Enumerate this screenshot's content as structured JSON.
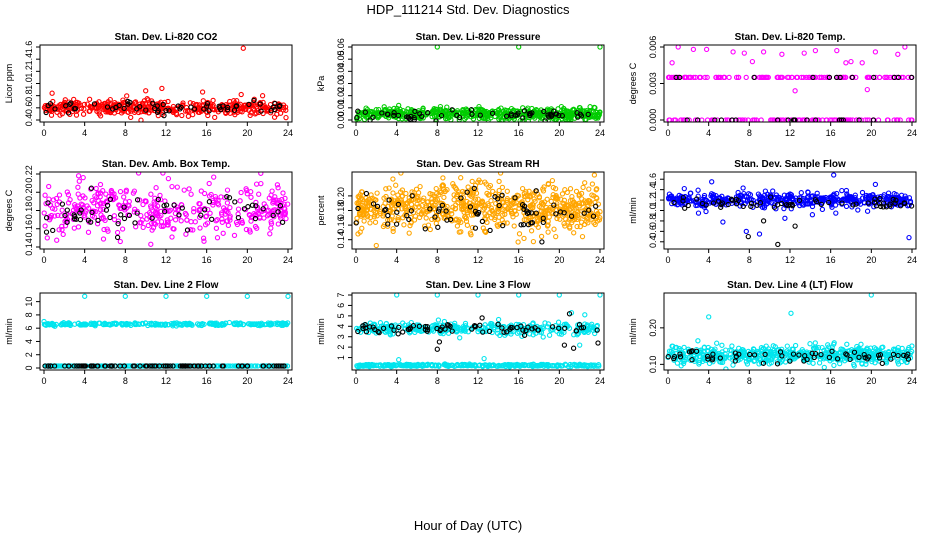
{
  "page": {
    "title": "HDP_111214  Std. Dev. Diagnostics",
    "xlabel": "Hour of Day (UTC)"
  },
  "colors": {
    "black": "#000000",
    "red": "#ff0000",
    "green": "#00cc00",
    "magenta": "#ff00ff",
    "orange": "#ffa500",
    "blue": "#0000ff",
    "cyan": "#00e5ee"
  },
  "chart_data": [
    {
      "type": "scatter",
      "title": "Stan. Dev. Li-820 CO2",
      "ylabel": "Licor ppm",
      "xlim": [
        0,
        24
      ],
      "ylim": [
        0.4,
        1.6
      ],
      "xticks": [
        "0",
        "4",
        "8",
        "12",
        "16",
        "20",
        "24"
      ],
      "yticks": [
        "0.4",
        "0.6",
        "0.8",
        "1.0",
        "1.2",
        "1.4",
        "1.6"
      ],
      "series": [
        {
          "color": "#ff0000",
          "bands": [
            [
              0.6,
              0.06
            ]
          ],
          "count": 400,
          "points": [
            [
              19.6,
              1.58
            ],
            [
              10.0,
              0.88
            ],
            [
              11.6,
              0.92
            ],
            [
              15.6,
              0.86
            ],
            [
              19.4,
              0.82
            ],
            [
              0.8,
              0.84
            ],
            [
              23.8,
              0.44
            ],
            [
              3.2,
              0.48
            ],
            [
              21.5,
              0.8
            ]
          ]
        },
        {
          "color": "#000000",
          "bands": [
            [
              0.6,
              0.05
            ]
          ],
          "count": 60,
          "points": []
        }
      ]
    },
    {
      "type": "scatter",
      "title": "Stan. Dev. Li-820 Pressure",
      "ylabel": "kPa",
      "xlim": [
        0,
        24
      ],
      "ylim": [
        0,
        0.06
      ],
      "xticks": [
        "0",
        "4",
        "8",
        "12",
        "16",
        "20",
        "24"
      ],
      "yticks": [
        "0.00",
        "0.01",
        "0.02",
        "0.03",
        "0.04",
        "0.05",
        "0.06"
      ],
      "series": [
        {
          "color": "#00cc00",
          "bands": [
            [
              0.005,
              0.0025
            ]
          ],
          "count": 500,
          "points": [
            [
              8.0,
              0.06
            ],
            [
              16.0,
              0.06
            ],
            [
              24.0,
              0.06
            ],
            [
              4.2,
              0.012
            ],
            [
              8.3,
              0.011
            ],
            [
              12.1,
              0.011
            ],
            [
              16.4,
              0.01
            ],
            [
              20.2,
              0.011
            ]
          ]
        },
        {
          "color": "#000000",
          "bands": [
            [
              0.004,
              0.002
            ]
          ],
          "count": 60,
          "points": []
        }
      ]
    },
    {
      "type": "scatter",
      "title": "Stan. Dev. Li-820 Temp.",
      "ylabel": "degrees C",
      "xlim": [
        0,
        24
      ],
      "ylim": [
        0,
        0.006
      ],
      "xticks": [
        "0",
        "4",
        "8",
        "12",
        "16",
        "20",
        "24"
      ],
      "yticks": [
        "0.000",
        "0.003",
        "0.006"
      ],
      "series": [
        {
          "color": "#ff00ff",
          "bands": [
            [
              0.0035,
              0
            ],
            [
              0.0,
              0
            ]
          ],
          "count": 220,
          "points": [
            [
              1.0,
              0.006
            ],
            [
              2.5,
              0.0058
            ],
            [
              3.8,
              0.0058
            ],
            [
              6.4,
              0.0056
            ],
            [
              7.5,
              0.0055
            ],
            [
              9.4,
              0.0056
            ],
            [
              11.2,
              0.0054
            ],
            [
              13.4,
              0.0055
            ],
            [
              14.5,
              0.0057
            ],
            [
              16.6,
              0.0057
            ],
            [
              18.0,
              0.0048
            ],
            [
              19.1,
              0.0047
            ],
            [
              20.4,
              0.0056
            ],
            [
              22.6,
              0.0054
            ],
            [
              23.3,
              0.006
            ],
            [
              0.4,
              0.0047
            ],
            [
              8.3,
              0.0048
            ],
            [
              12.5,
              0.0024
            ],
            [
              19.6,
              0.0025
            ],
            [
              17.5,
              0.0047
            ]
          ]
        },
        {
          "color": "#000000",
          "bands": [
            [
              0.0035,
              0
            ],
            [
              0.0,
              0
            ]
          ],
          "count": 30,
          "points": []
        }
      ]
    },
    {
      "type": "scatter",
      "title": "Stan. Dev. Amb. Box Temp.",
      "ylabel": "degrees C",
      "xlim": [
        0,
        24
      ],
      "ylim": [
        0.14,
        0.22
      ],
      "xticks": [
        "0",
        "4",
        "8",
        "12",
        "16",
        "20",
        "24"
      ],
      "yticks": [
        "0.14",
        "0.16",
        "0.18",
        "0.20",
        "0.22"
      ],
      "series": [
        {
          "color": "#ff00ff",
          "bands": [
            [
              0.18,
              0.014
            ]
          ],
          "count": 400,
          "points": [
            [
              11.7,
              0.228
            ],
            [
              9.3,
              0.225
            ],
            [
              7.5,
              0.146
            ],
            [
              10.5,
              0.143
            ],
            [
              3.4,
              0.218
            ]
          ]
        },
        {
          "color": "#000000",
          "bands": [
            [
              0.179,
              0.012
            ]
          ],
          "count": 60,
          "points": []
        }
      ]
    },
    {
      "type": "scatter",
      "title": "Stan. Dev. Gas Stream RH",
      "ylabel": "percent",
      "xlim": [
        0,
        24
      ],
      "ylim": [
        0.13,
        0.23
      ],
      "xticks": [
        "0",
        "4",
        "8",
        "12",
        "16",
        "20",
        "24"
      ],
      "yticks": [
        "0.14",
        "0.16",
        "0.18",
        "0.20"
      ],
      "series": [
        {
          "color": "#ffa500",
          "bands": [
            [
              0.185,
              0.016
            ]
          ],
          "count": 700,
          "points": [
            [
              2.0,
              0.132
            ],
            [
              0.2,
              0.148
            ],
            [
              10.3,
              0.225
            ]
          ]
        },
        {
          "color": "#000000",
          "bands": [
            [
              0.18,
              0.014
            ]
          ],
          "count": 70,
          "points": []
        }
      ]
    },
    {
      "type": "scatter",
      "title": "Stan. Dev. Sample Flow",
      "ylabel": "ml/min",
      "xlim": [
        0,
        24
      ],
      "ylim": [
        0.3,
        1.7
      ],
      "xticks": [
        "0",
        "4",
        "8",
        "12",
        "16",
        "20",
        "24"
      ],
      "yticks": [
        "0.4",
        "0.6",
        "0.8",
        "1.0",
        "1.2",
        "1.4",
        "1.6"
      ],
      "series": [
        {
          "color": "#0000ff",
          "bands": [
            [
              1.2,
              0.07
            ]
          ],
          "count": 450,
          "points": [
            [
              16.3,
              1.68
            ],
            [
              4.3,
              1.55
            ],
            [
              20.4,
              1.5
            ],
            [
              1.6,
              1.42
            ],
            [
              7.7,
              0.6
            ],
            [
              9.0,
              0.55
            ],
            [
              5.4,
              0.78
            ],
            [
              23.7,
              0.48
            ],
            [
              3.0,
              0.95
            ],
            [
              14.2,
              0.92
            ],
            [
              11.5,
              0.85
            ],
            [
              16.5,
              0.95
            ]
          ]
        },
        {
          "color": "#000000",
          "bands": [
            [
              1.15,
              0.05
            ]
          ],
          "count": 60,
          "points": [
            [
              7.9,
              0.5
            ],
            [
              10.8,
              0.35
            ],
            [
              9.4,
              0.8
            ],
            [
              12.5,
              0.7
            ]
          ]
        }
      ]
    },
    {
      "type": "scatter",
      "title": "Stan. Dev. Line 2 Flow",
      "ylabel": "ml/min",
      "xlim": [
        0,
        24
      ],
      "ylim": [
        0,
        11
      ],
      "xticks": [
        "0",
        "4",
        "8",
        "12",
        "16",
        "20",
        "24"
      ],
      "yticks": [
        "0",
        "2",
        "4",
        "6",
        "8",
        "10"
      ],
      "series": [
        {
          "color": "#00e5ee",
          "bands": [
            [
              6.6,
              0.1
            ],
            [
              0.3,
              0
            ]
          ],
          "count": 500,
          "points": [
            [
              0.0,
              7.0
            ],
            [
              4.0,
              10.8
            ],
            [
              8.0,
              10.8
            ],
            [
              12.0,
              10.8
            ],
            [
              16.0,
              10.8
            ],
            [
              20.0,
              10.8
            ],
            [
              24.0,
              10.8
            ]
          ]
        },
        {
          "color": "#000000",
          "bands": [
            [
              0.3,
              0
            ]
          ],
          "count": 90,
          "points": []
        }
      ]
    },
    {
      "type": "scatter",
      "title": "Stan. Dev. Line 3 Flow",
      "ylabel": "ml/min",
      "xlim": [
        0,
        24
      ],
      "ylim": [
        0,
        7
      ],
      "xticks": [
        "0",
        "4",
        "8",
        "12",
        "16",
        "20",
        "24"
      ],
      "yticks": [
        "1",
        "2",
        "3",
        "4",
        "5",
        "6",
        "7"
      ],
      "series": [
        {
          "color": "#00e5ee",
          "bands": [
            [
              3.8,
              0.28
            ],
            [
              0.25,
              0.05
            ]
          ],
          "count": 650,
          "points": [
            [
              4.0,
              7.0
            ],
            [
              8.0,
              7.0
            ],
            [
              12.0,
              7.0
            ],
            [
              16.0,
              7.0
            ],
            [
              20.0,
              7.0
            ],
            [
              24.0,
              7.0
            ],
            [
              4.2,
              0.8
            ],
            [
              12.6,
              0.9
            ],
            [
              10.2,
              2.9
            ],
            [
              21.2,
              5.3
            ],
            [
              22.5,
              5.1
            ],
            [
              22.0,
              2.2
            ]
          ]
        },
        {
          "color": "#000000",
          "bands": [
            [
              3.8,
              0.2
            ]
          ],
          "count": 70,
          "points": [
            [
              8.0,
              1.8
            ],
            [
              8.2,
              2.5
            ],
            [
              12.4,
              4.8
            ],
            [
              20.5,
              2.2
            ],
            [
              21.4,
              1.9
            ],
            [
              23.8,
              2.4
            ],
            [
              21.0,
              5.2
            ]
          ]
        }
      ]
    },
    {
      "type": "scatter",
      "title": "Stan. Dev. Line 4 (LT) Flow",
      "ylabel": "ml/min",
      "xlim": [
        0,
        24
      ],
      "ylim": [
        0.09,
        0.29
      ],
      "xticks": [
        "0",
        "4",
        "8",
        "12",
        "16",
        "20",
        "24"
      ],
      "yticks": [
        "0.10",
        "0.20"
      ],
      "series": [
        {
          "color": "#00e5ee",
          "bands": [
            [
              0.125,
              0.012
            ]
          ],
          "count": 550,
          "points": [
            [
              20.0,
              0.29
            ],
            [
              12.1,
              0.24
            ],
            [
              4.0,
              0.23
            ],
            [
              0.4,
              0.15
            ],
            [
              16.3,
              0.155
            ]
          ]
        },
        {
          "color": "#000000",
          "bands": [
            [
              0.12,
              0.01
            ]
          ],
          "count": 60,
          "points": []
        }
      ]
    }
  ]
}
